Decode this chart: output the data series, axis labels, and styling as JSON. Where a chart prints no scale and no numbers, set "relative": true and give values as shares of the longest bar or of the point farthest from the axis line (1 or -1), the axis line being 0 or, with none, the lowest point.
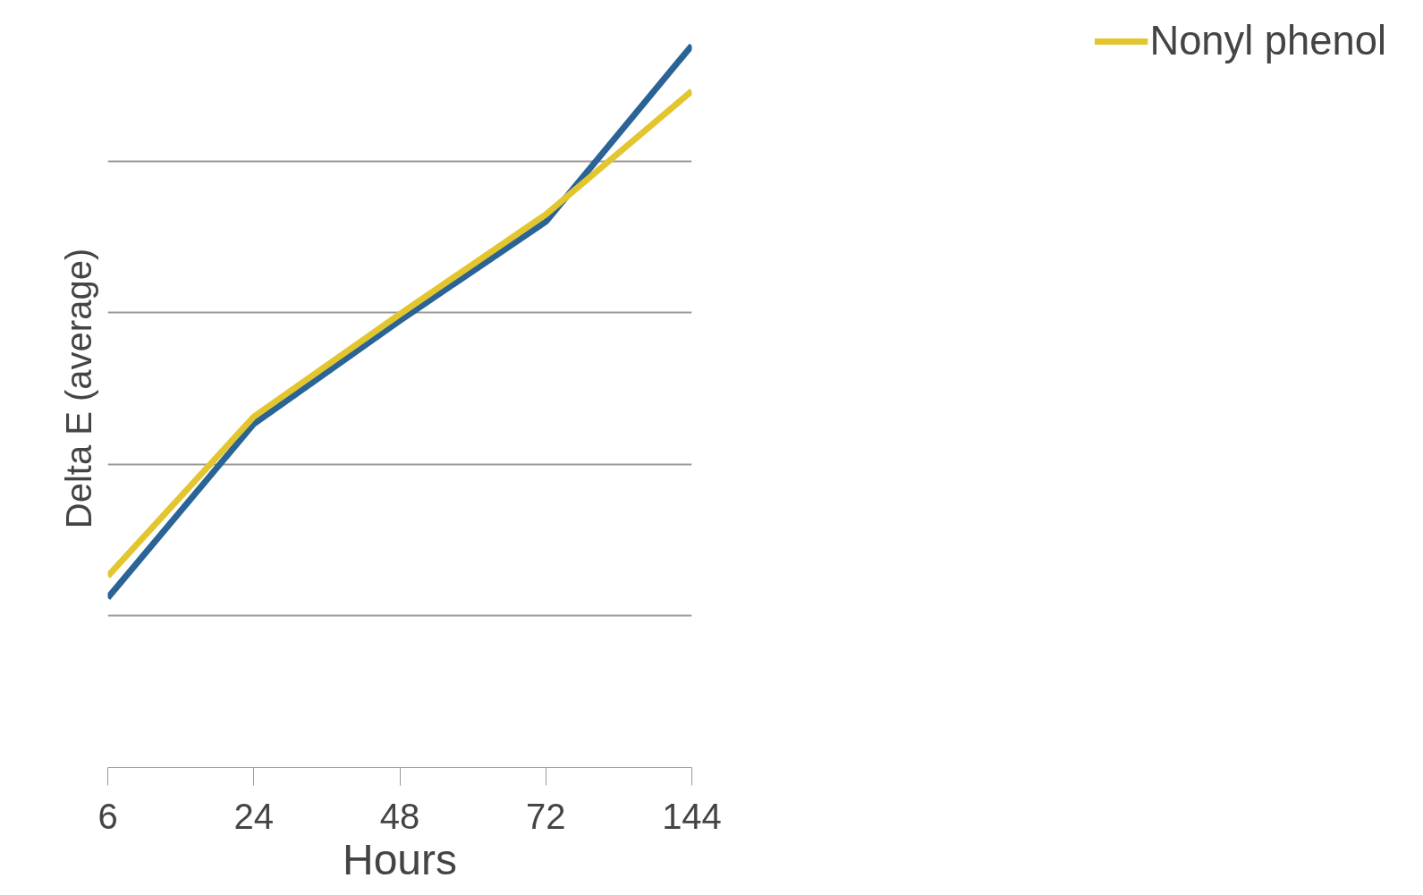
{
  "chart_data": {
    "type": "line",
    "relative": true,
    "xlabel": "Hours",
    "ylabel": "Delta E (average)",
    "categories": [
      "6",
      "24",
      "48",
      "72",
      "144"
    ],
    "series": [
      {
        "color": "#2a6496",
        "values": [
          0.235,
          0.476,
          0.619,
          0.756,
          1
        ]
      },
      {
        "name": "Nonyl phenol",
        "color": "#e3c62f",
        "values": [
          0.265,
          0.486,
          0.628,
          0.766,
          0.937
        ]
      }
    ],
    "grid": "y",
    "legend": "right",
    "marker": "none",
    "line_style": "solid"
  }
}
